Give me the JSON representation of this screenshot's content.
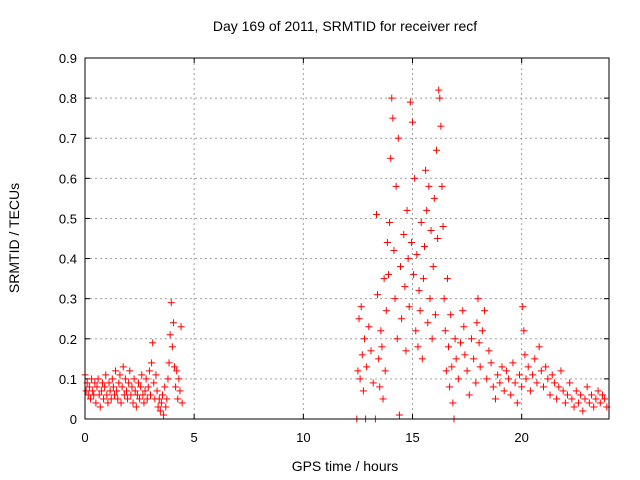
{
  "chart_data": {
    "type": "scatter",
    "title": "Day 169 of 2011, SRMTID for receiver recf",
    "xlabel": "GPS time / hours",
    "ylabel": "SRMTID / TECUs",
    "xlim": [
      0,
      24
    ],
    "ylim": [
      0,
      0.9
    ],
    "xticks": [
      0,
      5,
      10,
      15,
      20
    ],
    "yticks": [
      0,
      0.1,
      0.2,
      0.3,
      0.4,
      0.5,
      0.6,
      0.7,
      0.8,
      0.9
    ],
    "ytick_labels": [
      "0",
      "0.1",
      "0.2",
      "0.3",
      "0.4",
      "0.5",
      "0.6",
      "0.7",
      "0.8",
      "0.9"
    ],
    "xtick_labels": [
      "0",
      "5",
      "10",
      "15",
      "20"
    ],
    "grid": true,
    "marker": "+",
    "color": "#ff0000",
    "points": [
      [
        0.0,
        0.11
      ],
      [
        0.05,
        0.07
      ],
      [
        0.1,
        0.09
      ],
      [
        0.15,
        0.06
      ],
      [
        0.2,
        0.08
      ],
      [
        0.25,
        0.05
      ],
      [
        0.3,
        0.1
      ],
      [
        0.35,
        0.07
      ],
      [
        0.4,
        0.06
      ],
      [
        0.45,
        0.09
      ],
      [
        0.5,
        0.04
      ],
      [
        0.55,
        0.08
      ],
      [
        0.6,
        0.1
      ],
      [
        0.65,
        0.06
      ],
      [
        0.7,
        0.03
      ],
      [
        0.75,
        0.07
      ],
      [
        0.8,
        0.09
      ],
      [
        0.85,
        0.05
      ],
      [
        0.9,
        0.08
      ],
      [
        0.95,
        0.11
      ],
      [
        1.0,
        0.06
      ],
      [
        1.05,
        0.04
      ],
      [
        1.1,
        0.09
      ],
      [
        1.15,
        0.07
      ],
      [
        1.2,
        0.05
      ],
      [
        1.25,
        0.1
      ],
      [
        1.3,
        0.08
      ],
      [
        1.35,
        0.06
      ],
      [
        1.4,
        0.12
      ],
      [
        1.45,
        0.07
      ],
      [
        1.5,
        0.05
      ],
      [
        1.55,
        0.09
      ],
      [
        1.6,
        0.11
      ],
      [
        1.65,
        0.04
      ],
      [
        1.7,
        0.08
      ],
      [
        1.75,
        0.13
      ],
      [
        1.8,
        0.06
      ],
      [
        1.85,
        0.1
      ],
      [
        1.9,
        0.07
      ],
      [
        1.95,
        0.05
      ],
      [
        2.0,
        0.09
      ],
      [
        2.05,
        0.12
      ],
      [
        2.1,
        0.06
      ],
      [
        2.15,
        0.08
      ],
      [
        2.2,
        0.04
      ],
      [
        2.25,
        0.1
      ],
      [
        2.3,
        0.07
      ],
      [
        2.35,
        0.03
      ],
      [
        2.4,
        0.06
      ],
      [
        2.45,
        0.09
      ],
      [
        2.5,
        0.05
      ],
      [
        2.55,
        0.08
      ],
      [
        2.6,
        0.11
      ],
      [
        2.65,
        0.06
      ],
      [
        2.7,
        0.04
      ],
      [
        2.75,
        0.07
      ],
      [
        2.8,
        0.1
      ],
      [
        2.85,
        0.05
      ],
      [
        2.9,
        0.08
      ],
      [
        2.95,
        0.12
      ],
      [
        3.0,
        0.06
      ],
      [
        3.05,
        0.14
      ],
      [
        3.1,
        0.19
      ],
      [
        3.15,
        0.09
      ],
      [
        3.2,
        0.05
      ],
      [
        3.25,
        0.11
      ],
      [
        3.3,
        0.07
      ],
      [
        3.35,
        0.03
      ],
      [
        3.4,
        0.05
      ],
      [
        3.45,
        0.02
      ],
      [
        3.5,
        0.04
      ],
      [
        3.55,
        0.06
      ],
      [
        3.6,
        0.01
      ],
      [
        3.65,
        0.08
      ],
      [
        3.7,
        0.03
      ],
      [
        3.75,
        0.05
      ],
      [
        3.8,
        0.1
      ],
      [
        3.85,
        0.14
      ],
      [
        3.9,
        0.21
      ],
      [
        3.95,
        0.29
      ],
      [
        4.0,
        0.18
      ],
      [
        4.05,
        0.24
      ],
      [
        4.1,
        0.13
      ],
      [
        4.15,
        0.08
      ],
      [
        4.2,
        0.12
      ],
      [
        4.25,
        0.05
      ],
      [
        4.3,
        0.1
      ],
      [
        4.35,
        0.07
      ],
      [
        4.4,
        0.23
      ],
      [
        4.45,
        0.04
      ],
      [
        12.45,
        0.0
      ],
      [
        12.5,
        0.12
      ],
      [
        12.55,
        0.25
      ],
      [
        12.6,
        0.1
      ],
      [
        12.65,
        0.28
      ],
      [
        12.7,
        0.16
      ],
      [
        12.75,
        0.07
      ],
      [
        12.8,
        0.2
      ],
      [
        12.85,
        0.0
      ],
      [
        12.9,
        0.13
      ],
      [
        13.0,
        0.23
      ],
      [
        13.1,
        0.17
      ],
      [
        13.2,
        0.09
      ],
      [
        13.3,
        0.0
      ],
      [
        13.35,
        0.51
      ],
      [
        13.4,
        0.31
      ],
      [
        13.45,
        0.15
      ],
      [
        13.5,
        0.08
      ],
      [
        13.55,
        0.22
      ],
      [
        13.6,
        0.18
      ],
      [
        13.65,
        0.05
      ],
      [
        13.7,
        0.35
      ],
      [
        13.75,
        0.12
      ],
      [
        13.8,
        0.27
      ],
      [
        13.85,
        0.44
      ],
      [
        13.9,
        0.36
      ],
      [
        13.95,
        0.49
      ],
      [
        14.0,
        0.65
      ],
      [
        14.05,
        0.8
      ],
      [
        14.1,
        0.75
      ],
      [
        14.15,
        0.42
      ],
      [
        14.2,
        0.3
      ],
      [
        14.25,
        0.58
      ],
      [
        14.3,
        0.2
      ],
      [
        14.35,
        0.7
      ],
      [
        14.4,
        0.01
      ],
      [
        14.45,
        0.38
      ],
      [
        14.5,
        0.25
      ],
      [
        14.6,
        0.46
      ],
      [
        14.65,
        0.33
      ],
      [
        14.7,
        0.17
      ],
      [
        14.75,
        0.52
      ],
      [
        14.8,
        0.4
      ],
      [
        14.85,
        0.28
      ],
      [
        14.9,
        0.79
      ],
      [
        14.95,
        0.44
      ],
      [
        15.0,
        0.74
      ],
      [
        15.05,
        0.36
      ],
      [
        15.1,
        0.6
      ],
      [
        15.15,
        0.22
      ],
      [
        15.2,
        0.41
      ],
      [
        15.25,
        0.18
      ],
      [
        15.3,
        0.32
      ],
      [
        15.35,
        0.27
      ],
      [
        15.4,
        0.49
      ],
      [
        15.45,
        0.15
      ],
      [
        15.5,
        0.35
      ],
      [
        15.55,
        0.43
      ],
      [
        15.6,
        0.62
      ],
      [
        15.65,
        0.52
      ],
      [
        15.7,
        0.24
      ],
      [
        15.75,
        0.58
      ],
      [
        15.8,
        0.3
      ],
      [
        15.85,
        0.47
      ],
      [
        15.9,
        0.2
      ],
      [
        15.95,
        0.38
      ],
      [
        16.0,
        0.55
      ],
      [
        16.05,
        0.26
      ],
      [
        16.1,
        0.67
      ],
      [
        16.15,
        0.45
      ],
      [
        16.2,
        0.82
      ],
      [
        16.25,
        0.8
      ],
      [
        16.3,
        0.73
      ],
      [
        16.35,
        0.58
      ],
      [
        16.4,
        0.48
      ],
      [
        16.45,
        0.3
      ],
      [
        16.5,
        0.22
      ],
      [
        16.55,
        0.12
      ],
      [
        16.6,
        0.35
      ],
      [
        16.65,
        0.18
      ],
      [
        16.7,
        0.08
      ],
      [
        16.75,
        0.26
      ],
      [
        16.8,
        0.13
      ],
      [
        16.85,
        0.04
      ],
      [
        16.9,
        0.0
      ],
      [
        16.95,
        0.2
      ],
      [
        17.0,
        0.15
      ],
      [
        17.1,
        0.1
      ],
      [
        17.2,
        0.19
      ],
      [
        17.3,
        0.27
      ],
      [
        17.35,
        0.23
      ],
      [
        17.4,
        0.16
      ],
      [
        17.5,
        0.12
      ],
      [
        17.6,
        0.06
      ],
      [
        17.7,
        0.2
      ],
      [
        17.8,
        0.15
      ],
      [
        17.9,
        0.09
      ],
      [
        17.95,
        0.24
      ],
      [
        18.0,
        0.3
      ],
      [
        18.05,
        0.19
      ],
      [
        18.1,
        0.13
      ],
      [
        18.2,
        0.22
      ],
      [
        18.3,
        0.27
      ],
      [
        18.4,
        0.1
      ],
      [
        18.5,
        0.17
      ],
      [
        18.6,
        0.14
      ],
      [
        18.7,
        0.08
      ],
      [
        18.8,
        0.05
      ],
      [
        18.9,
        0.11
      ],
      [
        19.0,
        0.09
      ],
      [
        19.1,
        0.13
      ],
      [
        19.2,
        0.07
      ],
      [
        19.3,
        0.12
      ],
      [
        19.4,
        0.1
      ],
      [
        19.5,
        0.06
      ],
      [
        19.6,
        0.14
      ],
      [
        19.7,
        0.09
      ],
      [
        19.8,
        0.04
      ],
      [
        19.9,
        0.11
      ],
      [
        20.0,
        0.08
      ],
      [
        20.05,
        0.28
      ],
      [
        20.1,
        0.22
      ],
      [
        20.15,
        0.16
      ],
      [
        20.2,
        0.1
      ],
      [
        20.3,
        0.13
      ],
      [
        20.4,
        0.07
      ],
      [
        20.5,
        0.11
      ],
      [
        20.6,
        0.15
      ],
      [
        20.7,
        0.09
      ],
      [
        20.8,
        0.18
      ],
      [
        20.9,
        0.12
      ],
      [
        21.0,
        0.08
      ],
      [
        21.1,
        0.13
      ],
      [
        21.2,
        0.1
      ],
      [
        21.3,
        0.06
      ],
      [
        21.4,
        0.11
      ],
      [
        21.5,
        0.09
      ],
      [
        21.6,
        0.05
      ],
      [
        21.7,
        0.08
      ],
      [
        21.8,
        0.12
      ],
      [
        21.9,
        0.07
      ],
      [
        22.0,
        0.04
      ],
      [
        22.1,
        0.06
      ],
      [
        22.2,
        0.09
      ],
      [
        22.3,
        0.05
      ],
      [
        22.4,
        0.03
      ],
      [
        22.5,
        0.07
      ],
      [
        22.6,
        0.04
      ],
      [
        22.7,
        0.06
      ],
      [
        22.8,
        0.02
      ],
      [
        22.9,
        0.05
      ],
      [
        23.0,
        0.08
      ],
      [
        23.1,
        0.04
      ],
      [
        23.2,
        0.06
      ],
      [
        23.3,
        0.03
      ],
      [
        23.4,
        0.05
      ],
      [
        23.5,
        0.07
      ],
      [
        23.6,
        0.04
      ],
      [
        23.7,
        0.06
      ],
      [
        23.8,
        0.05
      ],
      [
        23.9,
        0.03
      ]
    ]
  }
}
